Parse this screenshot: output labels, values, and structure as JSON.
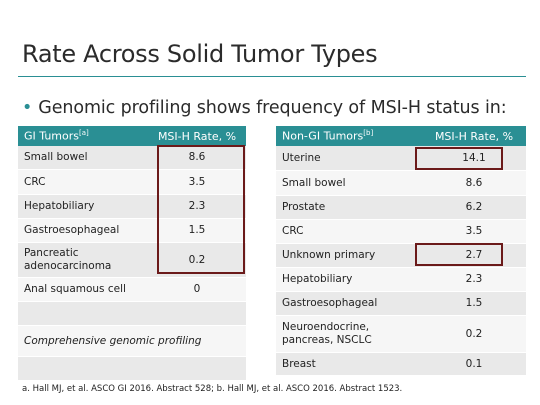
{
  "title": "Rate Across Solid Tumor Types",
  "bullet": "Genomic profiling shows frequency of MSI-H status in:",
  "gi_table": {
    "header_col1": "GI Tumors",
    "header_col1_sup": "[a]",
    "header_col2": "MSI-H Rate, %",
    "rows": [
      {
        "label": "Small bowel",
        "value": "8.6"
      },
      {
        "label": "CRC",
        "value": "3.5"
      },
      {
        "label": "Hepatobiliary",
        "value": "2.3"
      },
      {
        "label": "Gastroesophageal",
        "value": "1.5"
      },
      {
        "label": "Pancreatic adenocarcinoma",
        "value": "0.2"
      },
      {
        "label": "Anal squamous cell",
        "value": "0"
      }
    ],
    "note": "Comprehensive genomic profiling"
  },
  "nongi_table": {
    "header_col1": "Non-GI Tumors",
    "header_col1_sup": "[b]",
    "header_col2": "MSI-H Rate, %",
    "rows": [
      {
        "label": "Uterine",
        "value": "14.1"
      },
      {
        "label": "Small bowel",
        "value": "8.6"
      },
      {
        "label": "Prostate",
        "value": "6.2"
      },
      {
        "label": "CRC",
        "value": "3.5"
      },
      {
        "label": "Unknown primary",
        "value": "2.7"
      },
      {
        "label": "Hepatobiliary",
        "value": "2.3"
      },
      {
        "label": "Gastroesophageal",
        "value": "1.5"
      },
      {
        "label": "Neuroendocrine, pancreas, NSCLC",
        "value": "0.2"
      },
      {
        "label": "Breast",
        "value": "0.1"
      }
    ]
  },
  "footnote": "a. Hall MJ, et al. ASCO GI 2016. Abstract 528; b. Hall MJ, et al. ASCO 2016. Abstract 1523.",
  "colors": {
    "accent": "#2a8f94",
    "highlight_box": "#6b1a1a"
  }
}
